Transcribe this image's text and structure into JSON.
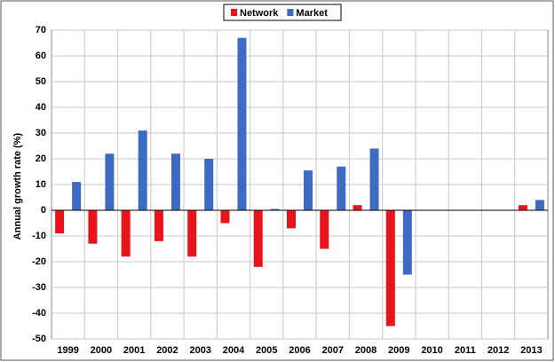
{
  "chart_data": {
    "type": "bar",
    "y_label": "Annual growth rate (%)",
    "categories": [
      "1999",
      "2000",
      "2001",
      "2002",
      "2003",
      "2004",
      "2005",
      "2006",
      "2007",
      "2008",
      "2009",
      "2010",
      "2011",
      "2012",
      "2013"
    ],
    "series": [
      {
        "name": "Network",
        "color": "#e8131b",
        "values": [
          -9,
          -13,
          -18,
          -12,
          -18,
          -5,
          -22,
          -7,
          -15,
          2,
          -45,
          null,
          null,
          null,
          2
        ]
      },
      {
        "name": "Market",
        "color": "#3d6bc4",
        "values": [
          11,
          22,
          31,
          22,
          20,
          67,
          0.5,
          15.5,
          17,
          24,
          -25,
          null,
          null,
          null,
          4
        ]
      }
    ],
    "ylim": [
      -50,
      70
    ],
    "yticks": [
      -50,
      -40,
      -30,
      -20,
      -10,
      0,
      10,
      20,
      30,
      40,
      50,
      60,
      70
    ],
    "grid": true,
    "legend": "top"
  }
}
